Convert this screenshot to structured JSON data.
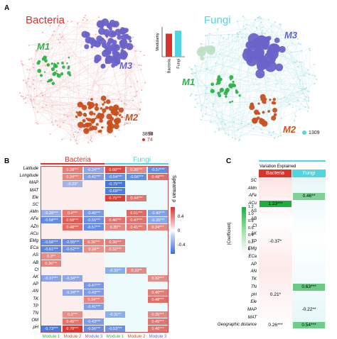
{
  "panel_a": {
    "letter": "A",
    "bacteria": {
      "title": "Bacteria",
      "modules": [
        "M1",
        "M2",
        "M3"
      ],
      "count_gray": "3898",
      "count_colored": "74"
    },
    "fungi": {
      "title": "Fungi",
      "modules": [
        "M1",
        "M2",
        "M3"
      ],
      "count": "1309"
    },
    "colors": {
      "m1": "#2db34a",
      "m2": "#c8501e",
      "m3": "#6a63c9",
      "bacteria": "#d9342b",
      "fungi": "#4fd6e0",
      "edges_bacteria": "#f3c9c9",
      "edges_fungi": "#bfe8ea"
    },
    "inset_chart": {
      "chart_data": {
        "type": "bar",
        "categories": [
          "Bacteria",
          "Fungi"
        ],
        "values": [
          0.62,
          0.7
        ],
        "ylabel": "Modularity",
        "ylim": [
          0,
          0.8
        ]
      }
    }
  },
  "panel_b": {
    "letter": "B",
    "group_bacteria": "Bacteria",
    "group_fungi": "Fungi",
    "col_labels": [
      "Module 1",
      "Module 2",
      "Module 3",
      "Module 1",
      "Module 2",
      "Module 3"
    ],
    "col_colors": [
      "#2db34a",
      "#c8501e",
      "#6a63c9",
      "#2db34a",
      "#c8501e",
      "#6a63c9"
    ],
    "row_labels": [
      "Latitude",
      "Longitude",
      "MAP",
      "MAT",
      "Ele",
      "SC",
      "AMn",
      "AFe",
      "AZn",
      "ACu",
      "EMg",
      "ECa",
      "AS",
      "AB",
      "Cl",
      "AK",
      "AP",
      "AN",
      "TK",
      "TP",
      "TN",
      "OM",
      "pH"
    ],
    "legend_title": "Spearman ρ",
    "legend_ticks": [
      "0.4",
      "0",
      "-0.4"
    ],
    "chart_data": {
      "type": "heatmap",
      "rows": [
        "Latitude",
        "Longitude",
        "MAP",
        "MAT",
        "Ele",
        "SC",
        "AMn",
        "AFe",
        "AZn",
        "ACu",
        "EMg",
        "ECa",
        "AS",
        "AB",
        "Cl",
        "AK",
        "AP",
        "AN",
        "TK",
        "TP",
        "TN",
        "OM",
        "pH"
      ],
      "columns": [
        "Bacteria Module 1",
        "Bacteria Module 2",
        "Bacteria Module 3",
        "Fungi Module 1",
        "Fungi Module 2",
        "Fungi Module 3"
      ],
      "cells": [
        [
          "",
          "0.38***",
          "-0.34***",
          "0.68***",
          "0.35***",
          "-0.57***"
        ],
        [
          "",
          "0.34***",
          "-0.41***",
          "-0.54***",
          "-0.56***",
          "0.48***"
        ],
        [
          "",
          "-0.23*",
          "",
          "-0.75***",
          "",
          ""
        ],
        [
          "",
          "",
          "",
          "-0.69***",
          "",
          ""
        ],
        [
          "",
          "",
          "",
          "0.75***",
          "0.44***",
          ""
        ],
        [
          "",
          "",
          "",
          "",
          "",
          ""
        ],
        [
          "-0.29***",
          "0.4***",
          "-0.45***",
          "",
          "0.51***",
          "-0.40***"
        ],
        [
          "-0.58***",
          "0.58***",
          "-0.55***",
          "0.46***",
          "0.47***",
          "-0.35***"
        ],
        [
          "",
          "0.48***",
          "-0.57***",
          "0.35**",
          "0.41***",
          "0.34***"
        ],
        [
          "",
          "",
          "",
          "",
          "",
          ""
        ],
        [
          "-0.58***",
          "-0.55***",
          "0.36***",
          "0.39***",
          "",
          ""
        ],
        [
          "-0.61***",
          "-0.52***",
          "0.28**",
          "0.32***",
          "",
          ""
        ],
        [
          "0.3**",
          "",
          "",
          "",
          "",
          ""
        ],
        [
          "0.36***",
          "",
          "",
          "",
          "",
          ""
        ],
        [
          "",
          "",
          "",
          "-0.33**",
          "0.33**",
          ""
        ],
        [
          "-0.37***",
          "-0.34***",
          "",
          "",
          "",
          "0.32***"
        ],
        [
          "",
          "",
          "-0.47***",
          "",
          "",
          ""
        ],
        [
          "",
          "-0.34***",
          "-0.43***",
          "",
          "",
          "0.40***"
        ],
        [
          "",
          "",
          "0.34***",
          "",
          "",
          "0.48***"
        ],
        [
          "",
          "",
          "-0.41***",
          "",
          "",
          ""
        ],
        [
          "",
          "0.3***",
          "",
          "-0.31**",
          "",
          "0.35***"
        ],
        [
          "",
          "0.45***",
          "-0.43***",
          "",
          "",
          "0.45***"
        ],
        [
          "-0.73***",
          "0.78***",
          "-0.56***",
          "-0.53***",
          "",
          "0.46***"
        ]
      ],
      "values": [
        [
          0,
          0.38,
          -0.34,
          0.68,
          0.35,
          -0.57
        ],
        [
          0,
          0.34,
          -0.41,
          -0.54,
          -0.56,
          0.48
        ],
        [
          0,
          -0.23,
          0,
          -0.75,
          0,
          0
        ],
        [
          0,
          0,
          0,
          -0.69,
          0,
          0
        ],
        [
          0,
          0,
          0,
          0.75,
          0.44,
          0
        ],
        [
          0,
          0,
          0,
          0,
          0,
          0
        ],
        [
          -0.29,
          0.4,
          -0.45,
          0,
          0.51,
          -0.4
        ],
        [
          -0.58,
          0.58,
          -0.55,
          0.46,
          0.47,
          -0.35
        ],
        [
          0,
          0.48,
          -0.57,
          0.35,
          0.41,
          0.34
        ],
        [
          0,
          0,
          0,
          0,
          0,
          0
        ],
        [
          -0.58,
          -0.55,
          0.36,
          0.39,
          0,
          0
        ],
        [
          -0.61,
          -0.52,
          0.28,
          0.32,
          0,
          0
        ],
        [
          0.3,
          0,
          0,
          0,
          0,
          0
        ],
        [
          0.36,
          0,
          0,
          0,
          0,
          0
        ],
        [
          0,
          0,
          0,
          -0.33,
          0.33,
          0
        ],
        [
          -0.37,
          -0.34,
          0,
          0,
          0,
          0.32
        ],
        [
          0,
          0,
          -0.47,
          0,
          0,
          0
        ],
        [
          0,
          -0.34,
          -0.43,
          0,
          0,
          0.4
        ],
        [
          0,
          0,
          0.34,
          0,
          0,
          0.48
        ],
        [
          0,
          0,
          -0.41,
          0,
          0,
          0
        ],
        [
          0,
          0.3,
          0,
          -0.31,
          0,
          0.35
        ],
        [
          0,
          0.45,
          -0.43,
          0,
          0,
          0.45
        ],
        [
          -0.73,
          0.78,
          -0.56,
          -0.53,
          0,
          0.46
        ]
      ],
      "scale": [
        -0.4,
        0.4
      ]
    }
  },
  "panel_c": {
    "letter": "C",
    "title": "Variation Explained",
    "col_bacteria": "Bacteria",
    "col_fungi": "Fungi",
    "row_labels": [
      "SC",
      "AMn",
      "AFe",
      "ACu",
      "AS",
      "AB",
      "Cl",
      "AK",
      "TP",
      "EMg",
      "ECa",
      "AP",
      "AN",
      "TK",
      "TN",
      "pH",
      "Ele",
      "MAP",
      "MAT",
      "Geographic distance"
    ],
    "legend_title": "|Coefficient|",
    "legend_ticks": [
      "1.2",
      "1.0",
      "0.8",
      "0.6",
      "0.4",
      "0.2",
      "0"
    ],
    "chart_data": {
      "type": "heatmap",
      "rows": [
        "SC",
        "AMn",
        "AFe",
        "ACu",
        "AS",
        "AB",
        "Cl",
        "AK",
        "TP",
        "EMg",
        "ECa",
        "AP",
        "AN",
        "TK",
        "TN",
        "pH",
        "Ele",
        "MAP",
        "MAT",
        "Geographic distance"
      ],
      "columns": [
        "Bacteria",
        "Fungi"
      ],
      "cells": [
        [
          "",
          ""
        ],
        [
          "",
          ""
        ],
        [
          "",
          "0.46**"
        ],
        [
          "1.23***",
          ""
        ],
        [
          "",
          ""
        ],
        [
          "",
          ""
        ],
        [
          "",
          ""
        ],
        [
          "",
          ""
        ],
        [
          "-0.37*",
          ""
        ],
        [
          "",
          ""
        ],
        [
          "",
          ""
        ],
        [
          "",
          ""
        ],
        [
          "",
          ""
        ],
        [
          "",
          ""
        ],
        [
          "",
          "0.63***"
        ],
        [
          "0.21*",
          ""
        ],
        [
          "",
          ""
        ],
        [
          "",
          "-0.22**"
        ],
        [
          "",
          ""
        ],
        [
          "0.26***",
          "0.54***"
        ]
      ],
      "values": [
        [
          0,
          0
        ],
        [
          0,
          0
        ],
        [
          0,
          0.46
        ],
        [
          1.23,
          0
        ],
        [
          0,
          0
        ],
        [
          0,
          0
        ],
        [
          0,
          0
        ],
        [
          0,
          0
        ],
        [
          -0.37,
          0
        ],
        [
          0,
          0
        ],
        [
          0,
          0
        ],
        [
          0,
          0
        ],
        [
          0,
          0
        ],
        [
          0,
          0
        ],
        [
          0,
          0.63
        ],
        [
          0.21,
          0
        ],
        [
          0,
          0
        ],
        [
          0,
          -0.22
        ],
        [
          0,
          0
        ],
        [
          0.26,
          0.54
        ]
      ],
      "scale": [
        0,
        1.2
      ]
    }
  }
}
